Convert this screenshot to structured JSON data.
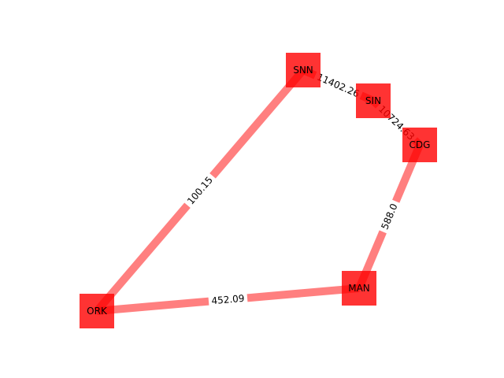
{
  "graph": {
    "node_color": "#ff0000",
    "edge_color": "#ff0000",
    "nodes": [
      {
        "id": "SNN",
        "label": "SNN"
      },
      {
        "id": "SIN",
        "label": "SIN"
      },
      {
        "id": "CDG",
        "label": "CDG"
      },
      {
        "id": "MAN",
        "label": "MAN"
      },
      {
        "id": "ORK",
        "label": "ORK"
      }
    ],
    "edges": [
      {
        "source": "ORK",
        "target": "SNN",
        "label": "100.15"
      },
      {
        "source": "ORK",
        "target": "MAN",
        "label": "452.09"
      },
      {
        "source": "MAN",
        "target": "CDG",
        "label": "588.0"
      },
      {
        "source": "SNN",
        "target": "SIN",
        "label": "11402.26"
      },
      {
        "source": "SIN",
        "target": "CDG",
        "label": "10724.63"
      }
    ]
  }
}
